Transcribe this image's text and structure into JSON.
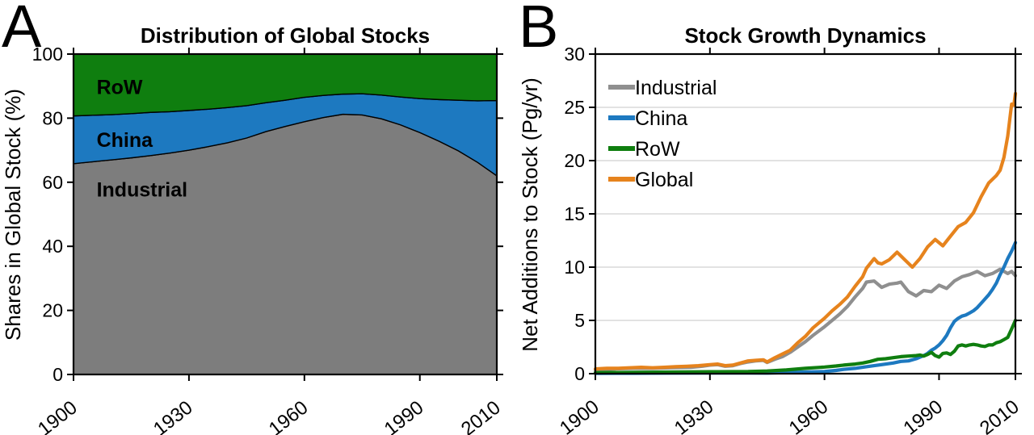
{
  "figure": {
    "background": "#ffffff",
    "axis_color": "#000000",
    "grid_color": "#d8d8d8"
  },
  "chart_data": [
    {
      "id": "A",
      "panel_letter": "A",
      "type": "area",
      "stacked": true,
      "title": "Distribution of Global Stocks",
      "xlabel": "",
      "ylabel": "Shares in Global Stock (%)",
      "xlim": [
        1900,
        2010
      ],
      "ylim": [
        0,
        100
      ],
      "xticks": [
        1900,
        1930,
        1960,
        1990,
        2010
      ],
      "yticks": [
        0,
        20,
        40,
        60,
        80,
        100
      ],
      "grid": false,
      "years": [
        1900,
        1905,
        1910,
        1915,
        1920,
        1925,
        1930,
        1935,
        1940,
        1945,
        1950,
        1955,
        1960,
        1965,
        1970,
        1975,
        1980,
        1985,
        1990,
        1995,
        2000,
        2005,
        2010
      ],
      "series": [
        {
          "name": "Industrial",
          "color": "#7d7d7d",
          "values": [
            65.8,
            66.4,
            67.0,
            67.6,
            68.3,
            69.1,
            70.0,
            71.1,
            72.3,
            73.8,
            75.8,
            77.4,
            78.9,
            80.2,
            81.2,
            81.0,
            79.8,
            77.9,
            75.5,
            72.8,
            69.8,
            66.2,
            62.0
          ]
        },
        {
          "name": "China",
          "color": "#1d79c0",
          "values": [
            14.9,
            14.5,
            14.1,
            13.8,
            13.5,
            12.9,
            12.4,
            11.7,
            11.0,
            10.1,
            9.0,
            8.2,
            7.6,
            6.9,
            6.3,
            6.6,
            7.4,
            8.7,
            10.6,
            13.0,
            15.8,
            19.2,
            23.5
          ]
        },
        {
          "name": "RoW",
          "color": "#0f7e0f",
          "values": [
            19.3,
            19.1,
            18.9,
            18.6,
            18.2,
            18.0,
            17.6,
            17.2,
            16.7,
            16.1,
            15.2,
            14.4,
            13.5,
            12.9,
            12.5,
            12.4,
            12.8,
            13.4,
            13.9,
            14.2,
            14.4,
            14.6,
            14.5
          ]
        }
      ],
      "inline_labels": [
        {
          "text": "RoW",
          "year": 1906,
          "value": 87.5
        },
        {
          "text": "China",
          "year": 1906,
          "value": 71.0
        },
        {
          "text": "Industrial",
          "year": 1906,
          "value": 55.5
        }
      ]
    },
    {
      "id": "B",
      "panel_letter": "B",
      "type": "line",
      "title": "Stock Growth Dynamics",
      "xlabel": "",
      "ylabel": "Net Additions to Stock (Pg/yr)",
      "xlim": [
        1900,
        2010
      ],
      "ylim": [
        0,
        30
      ],
      "xticks": [
        1900,
        1930,
        1960,
        1990,
        2010
      ],
      "yticks": [
        0,
        5,
        10,
        15,
        20,
        25,
        30
      ],
      "grid": true,
      "legend": {
        "position": "top-left",
        "entries": [
          "Industrial",
          "China",
          "RoW",
          "Global"
        ]
      },
      "series": [
        {
          "name": "Industrial",
          "color": "#8f8f8f",
          "points": [
            [
              1900,
              0.35
            ],
            [
              1905,
              0.45
            ],
            [
              1910,
              0.5
            ],
            [
              1915,
              0.5
            ],
            [
              1920,
              0.55
            ],
            [
              1925,
              0.6
            ],
            [
              1928,
              0.7
            ],
            [
              1930,
              0.8
            ],
            [
              1932,
              0.85
            ],
            [
              1934,
              0.7
            ],
            [
              1936,
              0.75
            ],
            [
              1938,
              0.95
            ],
            [
              1940,
              1.1
            ],
            [
              1942,
              1.2
            ],
            [
              1944,
              1.25
            ],
            [
              1945,
              1.05
            ],
            [
              1947,
              1.35
            ],
            [
              1949,
              1.6
            ],
            [
              1951,
              2.0
            ],
            [
              1953,
              2.5
            ],
            [
              1955,
              3.0
            ],
            [
              1957,
              3.6
            ],
            [
              1960,
              4.4
            ],
            [
              1962,
              5.0
            ],
            [
              1964,
              5.6
            ],
            [
              1966,
              6.3
            ],
            [
              1968,
              7.2
            ],
            [
              1970,
              8.0
            ],
            [
              1971,
              8.6
            ],
            [
              1973,
              8.7
            ],
            [
              1975,
              8.1
            ],
            [
              1977,
              8.4
            ],
            [
              1979,
              8.5
            ],
            [
              1980,
              8.6
            ],
            [
              1982,
              7.7
            ],
            [
              1984,
              7.3
            ],
            [
              1986,
              7.8
            ],
            [
              1988,
              7.7
            ],
            [
              1990,
              8.3
            ],
            [
              1992,
              8.0
            ],
            [
              1994,
              8.7
            ],
            [
              1996,
              9.1
            ],
            [
              1998,
              9.3
            ],
            [
              2000,
              9.6
            ],
            [
              2002,
              9.2
            ],
            [
              2004,
              9.4
            ],
            [
              2006,
              9.8
            ],
            [
              2008,
              9.4
            ],
            [
              2009,
              9.6
            ],
            [
              2010,
              9.2
            ]
          ]
        },
        {
          "name": "China",
          "color": "#1d79c0",
          "points": [
            [
              1900,
              0.03
            ],
            [
              1910,
              0.04
            ],
            [
              1920,
              0.05
            ],
            [
              1930,
              0.06
            ],
            [
              1940,
              0.06
            ],
            [
              1945,
              0.05
            ],
            [
              1950,
              0.1
            ],
            [
              1955,
              0.15
            ],
            [
              1960,
              0.2
            ],
            [
              1963,
              0.3
            ],
            [
              1965,
              0.4
            ],
            [
              1968,
              0.5
            ],
            [
              1970,
              0.6
            ],
            [
              1973,
              0.75
            ],
            [
              1975,
              0.85
            ],
            [
              1978,
              1.0
            ],
            [
              1980,
              1.15
            ],
            [
              1982,
              1.2
            ],
            [
              1984,
              1.4
            ],
            [
              1986,
              1.7
            ],
            [
              1987,
              1.9
            ],
            [
              1988,
              2.2
            ],
            [
              1989,
              2.4
            ],
            [
              1990,
              2.7
            ],
            [
              1991,
              3.1
            ],
            [
              1992,
              3.6
            ],
            [
              1993,
              4.3
            ],
            [
              1994,
              4.9
            ],
            [
              1995,
              5.2
            ],
            [
              1996,
              5.4
            ],
            [
              1997,
              5.5
            ],
            [
              1998,
              5.7
            ],
            [
              1999,
              5.9
            ],
            [
              2000,
              6.2
            ],
            [
              2001,
              6.6
            ],
            [
              2002,
              7.0
            ],
            [
              2003,
              7.4
            ],
            [
              2004,
              7.9
            ],
            [
              2005,
              8.5
            ],
            [
              2006,
              9.3
            ],
            [
              2007,
              10.0
            ],
            [
              2008,
              10.8
            ],
            [
              2009,
              11.5
            ],
            [
              2010,
              12.3
            ]
          ]
        },
        {
          "name": "RoW",
          "color": "#0f7e0f",
          "points": [
            [
              1900,
              0.1
            ],
            [
              1910,
              0.12
            ],
            [
              1920,
              0.15
            ],
            [
              1930,
              0.18
            ],
            [
              1940,
              0.2
            ],
            [
              1945,
              0.25
            ],
            [
              1950,
              0.35
            ],
            [
              1955,
              0.5
            ],
            [
              1960,
              0.62
            ],
            [
              1963,
              0.72
            ],
            [
              1965,
              0.8
            ],
            [
              1968,
              0.9
            ],
            [
              1970,
              1.0
            ],
            [
              1972,
              1.15
            ],
            [
              1974,
              1.35
            ],
            [
              1976,
              1.4
            ],
            [
              1978,
              1.5
            ],
            [
              1980,
              1.6
            ],
            [
              1982,
              1.65
            ],
            [
              1984,
              1.7
            ],
            [
              1985,
              1.75
            ],
            [
              1986,
              1.65
            ],
            [
              1987,
              1.8
            ],
            [
              1988,
              2.0
            ],
            [
              1989,
              1.7
            ],
            [
              1990,
              1.55
            ],
            [
              1991,
              1.9
            ],
            [
              1992,
              1.95
            ],
            [
              1993,
              1.8
            ],
            [
              1994,
              2.1
            ],
            [
              1995,
              2.6
            ],
            [
              1996,
              2.7
            ],
            [
              1997,
              2.6
            ],
            [
              1998,
              2.7
            ],
            [
              1999,
              2.75
            ],
            [
              2000,
              2.7
            ],
            [
              2001,
              2.6
            ],
            [
              2002,
              2.55
            ],
            [
              2003,
              2.7
            ],
            [
              2004,
              2.7
            ],
            [
              2005,
              2.9
            ],
            [
              2006,
              3.0
            ],
            [
              2007,
              3.2
            ],
            [
              2008,
              3.4
            ],
            [
              2009,
              4.2
            ],
            [
              2010,
              5.0
            ]
          ]
        },
        {
          "name": "Global",
          "color": "#e6831d",
          "points": [
            [
              1900,
              0.45
            ],
            [
              1903,
              0.5
            ],
            [
              1906,
              0.5
            ],
            [
              1909,
              0.55
            ],
            [
              1912,
              0.6
            ],
            [
              1915,
              0.55
            ],
            [
              1918,
              0.6
            ],
            [
              1921,
              0.65
            ],
            [
              1924,
              0.7
            ],
            [
              1927,
              0.75
            ],
            [
              1930,
              0.85
            ],
            [
              1932,
              0.9
            ],
            [
              1934,
              0.75
            ],
            [
              1936,
              0.8
            ],
            [
              1938,
              1.0
            ],
            [
              1940,
              1.2
            ],
            [
              1942,
              1.25
            ],
            [
              1944,
              1.3
            ],
            [
              1945,
              1.1
            ],
            [
              1947,
              1.5
            ],
            [
              1949,
              1.85
            ],
            [
              1951,
              2.2
            ],
            [
              1953,
              2.9
            ],
            [
              1955,
              3.5
            ],
            [
              1957,
              4.3
            ],
            [
              1960,
              5.2
            ],
            [
              1962,
              5.9
            ],
            [
              1964,
              6.5
            ],
            [
              1966,
              7.2
            ],
            [
              1968,
              8.2
            ],
            [
              1970,
              9.1
            ],
            [
              1971,
              9.9
            ],
            [
              1973,
              10.8
            ],
            [
              1974,
              10.4
            ],
            [
              1975,
              10.3
            ],
            [
              1977,
              10.7
            ],
            [
              1979,
              11.4
            ],
            [
              1981,
              10.7
            ],
            [
              1983,
              10.0
            ],
            [
              1985,
              10.8
            ],
            [
              1987,
              11.9
            ],
            [
              1989,
              12.6
            ],
            [
              1991,
              12.0
            ],
            [
              1993,
              12.9
            ],
            [
              1995,
              13.8
            ],
            [
              1997,
              14.2
            ],
            [
              1999,
              15.1
            ],
            [
              2001,
              16.6
            ],
            [
              2003,
              17.9
            ],
            [
              2005,
              18.6
            ],
            [
              2006,
              19.1
            ],
            [
              2007,
              20.3
            ],
            [
              2008,
              22.3
            ],
            [
              2009,
              25.3
            ],
            [
              2009.6,
              25.2
            ],
            [
              2010,
              26.3
            ]
          ]
        }
      ]
    }
  ]
}
